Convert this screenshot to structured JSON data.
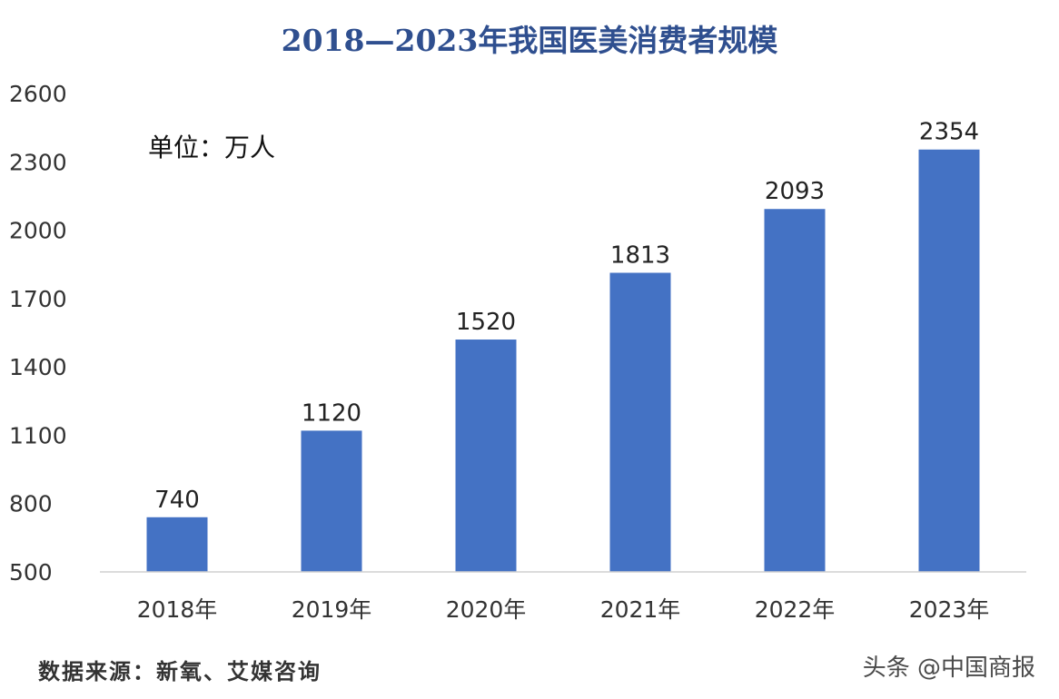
{
  "chart_data": {
    "type": "bar",
    "title": "2018—2023年我国医美消费者规模",
    "unit_note": "单位：万人",
    "categories": [
      "2018年",
      "2019年",
      "2020年",
      "2021年",
      "2022年",
      "2023年"
    ],
    "values": [
      740,
      1120,
      1520,
      1813,
      2093,
      2354
    ],
    "ylim": [
      500,
      2600
    ],
    "yticks": [
      500,
      800,
      1100,
      1400,
      1700,
      2000,
      2300,
      2600
    ],
    "grid": false,
    "legend": "none",
    "bar_color": "#4472c4",
    "source": "数据来源：新氧、艾媒咨询"
  },
  "watermark": "头条 @中国商报"
}
